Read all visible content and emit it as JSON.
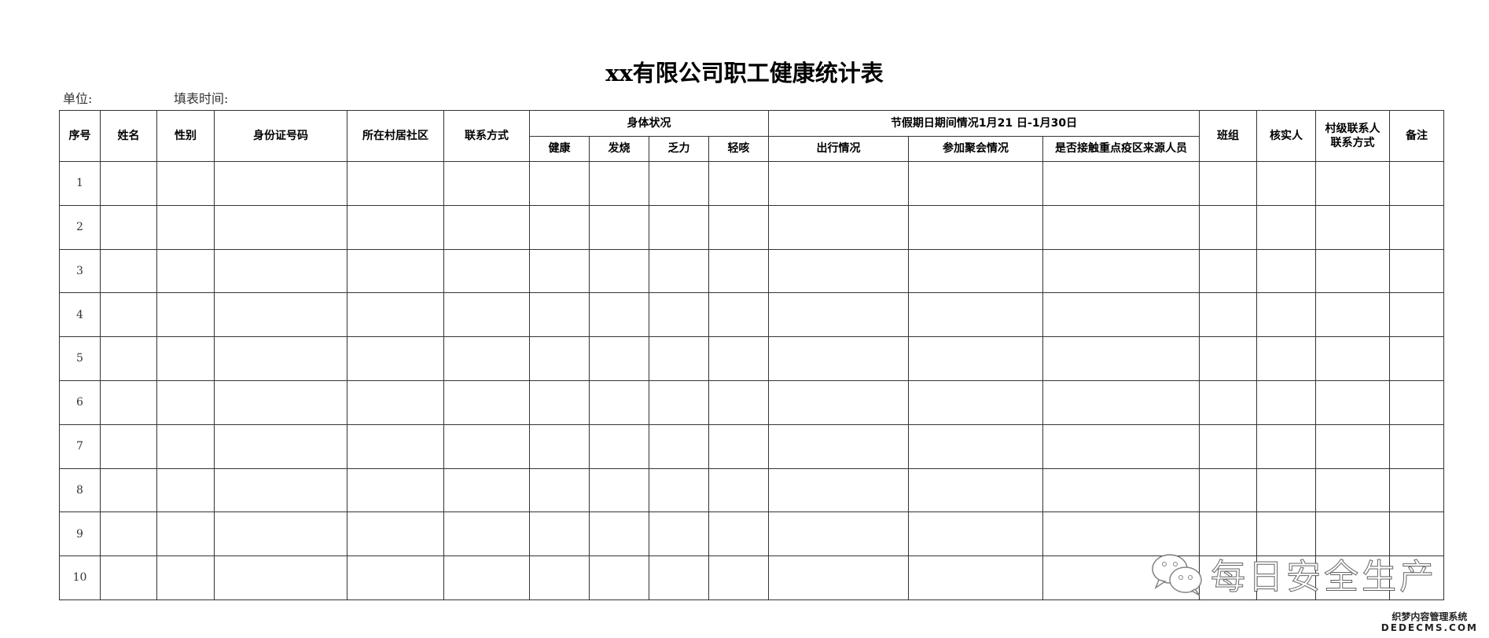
{
  "title": "xx有限公司职工健康统计表",
  "meta": {
    "unit_label": "单位:",
    "fill_time_label": "填表时间:"
  },
  "headers": {
    "seq": "序号",
    "name": "姓名",
    "gender": "性别",
    "id_number": "身份证号码",
    "community": "所在村居社区",
    "contact": "联系方式",
    "health_group": "身体状况",
    "health": [
      "健康",
      "发烧",
      "乏力",
      "轻咳"
    ],
    "holiday_group": "节假期日期间情况1月21 日-1月30日",
    "holiday": [
      "出行情况",
      "参加聚会情况",
      "是否接触重点疫区来源人员"
    ],
    "team": "班组",
    "verifier": "核实人",
    "village_contact_line1": "村级联系人",
    "village_contact_line2": "联系方式",
    "remarks": "备注"
  },
  "rows": [
    "1",
    "2",
    "3",
    "4",
    "5",
    "6",
    "7",
    "8",
    "9",
    "10"
  ],
  "watermark": {
    "text": "每日安全生产",
    "icon": "wechat-icon"
  },
  "logo": {
    "line1": "织梦内容管理系统",
    "line2": "DEDECMS.COM"
  }
}
